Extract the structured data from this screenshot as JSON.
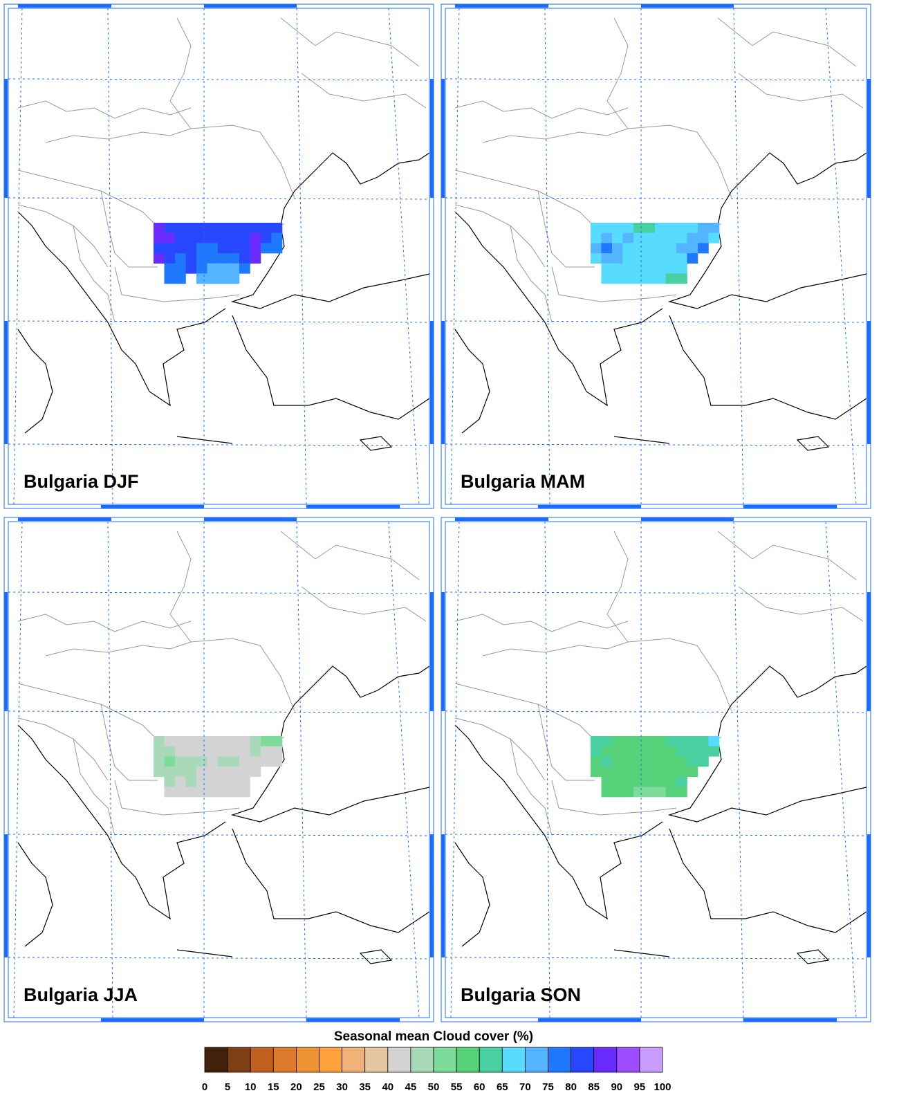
{
  "panels": [
    {
      "title": "Bulgaria DJF",
      "cells": [
        [
          87,
          82,
          82,
          82,
          82,
          82,
          82,
          82,
          82,
          82,
          82,
          82
        ],
        [
          87,
          87,
          82,
          82,
          82,
          82,
          82,
          82,
          82,
          87,
          82,
          77
        ],
        [
          82,
          82,
          82,
          82,
          77,
          77,
          82,
          82,
          82,
          87,
          77,
          77
        ],
        [
          87,
          82,
          77,
          82,
          77,
          77,
          77,
          77,
          82,
          87,
          null,
          null
        ],
        [
          null,
          77,
          77,
          82,
          77,
          72,
          72,
          72,
          77,
          null,
          null,
          null
        ],
        [
          null,
          77,
          77,
          null,
          72,
          72,
          72,
          72,
          null,
          null,
          null,
          null
        ]
      ]
    },
    {
      "title": "Bulgaria MAM",
      "cells": [
        [
          67,
          67,
          67,
          67,
          62,
          62,
          67,
          67,
          67,
          67,
          72,
          72
        ],
        [
          67,
          72,
          67,
          72,
          67,
          67,
          67,
          67,
          67,
          72,
          72,
          67
        ],
        [
          72,
          77,
          72,
          67,
          67,
          67,
          67,
          67,
          72,
          72,
          77,
          null
        ],
        [
          67,
          72,
          72,
          67,
          67,
          67,
          67,
          67,
          67,
          77,
          null,
          null
        ],
        [
          null,
          67,
          67,
          67,
          67,
          67,
          67,
          67,
          67,
          null,
          null,
          null
        ],
        [
          null,
          67,
          67,
          67,
          67,
          67,
          67,
          62,
          62,
          null,
          null,
          null
        ]
      ]
    },
    {
      "title": "Bulgaria JJA",
      "cells": [
        [
          47,
          42,
          42,
          42,
          42,
          42,
          42,
          42,
          42,
          47,
          52,
          52
        ],
        [
          47,
          47,
          42,
          42,
          42,
          42,
          42,
          42,
          42,
          47,
          42,
          42
        ],
        [
          47,
          52,
          47,
          47,
          47,
          42,
          47,
          47,
          42,
          42,
          42,
          42
        ],
        [
          47,
          47,
          47,
          47,
          42,
          42,
          42,
          42,
          42,
          42,
          null,
          null
        ],
        [
          null,
          47,
          42,
          47,
          42,
          42,
          42,
          42,
          42,
          null,
          null,
          null
        ],
        [
          null,
          42,
          42,
          42,
          42,
          42,
          42,
          42,
          42,
          null,
          null,
          null
        ]
      ]
    },
    {
      "title": "Bulgaria SON",
      "cells": [
        [
          62,
          62,
          57,
          57,
          57,
          57,
          57,
          62,
          62,
          62,
          62,
          67
        ],
        [
          62,
          57,
          57,
          57,
          57,
          57,
          57,
          57,
          62,
          62,
          62,
          62
        ],
        [
          57,
          62,
          57,
          57,
          57,
          57,
          57,
          57,
          57,
          62,
          62,
          null
        ],
        [
          57,
          57,
          57,
          57,
          57,
          57,
          57,
          57,
          57,
          57,
          null,
          null
        ],
        [
          null,
          57,
          57,
          57,
          57,
          57,
          57,
          57,
          62,
          null,
          null,
          null
        ],
        [
          null,
          57,
          57,
          57,
          52,
          52,
          52,
          57,
          57,
          null,
          null,
          null
        ]
      ]
    }
  ],
  "colorbar": {
    "title": "Seasonal mean Cloud cover (%)",
    "ticks": [
      0,
      5,
      10,
      15,
      20,
      25,
      30,
      35,
      40,
      45,
      50,
      55,
      60,
      65,
      70,
      75,
      80,
      85,
      90,
      95,
      100
    ],
    "colors": [
      "#42210b",
      "#7f3f15",
      "#c0601f",
      "#dd7a2c",
      "#ee9331",
      "#ffa23c",
      "#f1b27a",
      "#e6c6a3",
      "#d3d3d3",
      "#a8dab9",
      "#7ddc9a",
      "#58d27a",
      "#49d0a0",
      "#57dcff",
      "#55b4ff",
      "#1e79ff",
      "#2848ff",
      "#6a2bff",
      "#9d4dff",
      "#c99cff"
    ]
  }
}
